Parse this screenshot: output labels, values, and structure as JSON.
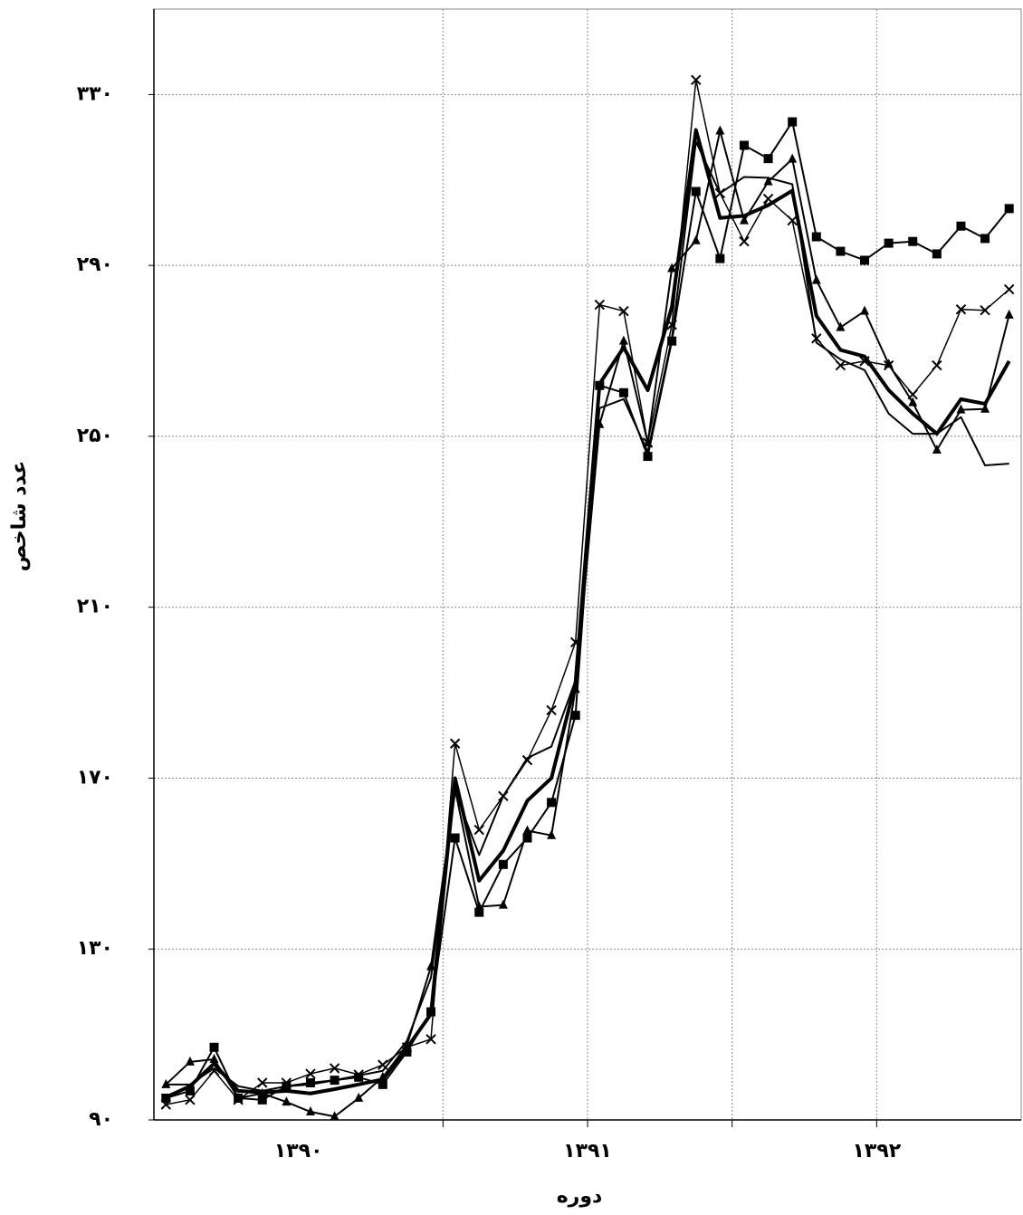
{
  "chart_data": {
    "type": "line",
    "x_label": "دوره",
    "y_label": "عدد شاخص",
    "x": [
      0.5,
      1.5,
      2.5,
      3.5,
      4.5,
      5.5,
      6.5,
      7.5,
      8.5,
      9.5,
      10.5,
      11.5,
      12.5,
      13.5,
      14.5,
      15.5,
      16.5,
      17.5,
      18.5,
      19.5,
      20.5,
      21.5,
      22.5,
      23.5,
      24.5,
      25.5,
      26.5,
      27.5,
      28.5,
      29.5,
      30.5,
      31.5,
      32.5,
      33.5,
      34.5,
      35.5
    ],
    "xlim": [
      0,
      36
    ],
    "xticks": [
      {
        "value": 6,
        "label": "۱۳۹۰"
      },
      {
        "value": 18,
        "label": "۱۳۹۱"
      },
      {
        "value": 30,
        "label": "۱۳۹۲"
      }
    ],
    "xgrid": [
      12,
      18,
      24,
      30
    ],
    "ylim": [
      90,
      350
    ],
    "yticks": [
      {
        "value": 90,
        "label": "۹۰"
      },
      {
        "value": 130,
        "label": "۱۳۰"
      },
      {
        "value": 170,
        "label": "۱۷۰"
      },
      {
        "value": 210,
        "label": "۲۱۰"
      },
      {
        "value": 250,
        "label": "۲۵۰"
      },
      {
        "value": 290,
        "label": "۲۹۰"
      },
      {
        "value": 330,
        "label": "۳۳۰"
      }
    ],
    "grid": true,
    "series": [
      {
        "color": "#000000",
        "marker": "square",
        "line_width": 2,
        "values": [
          95.1,
          96.8,
          107.0,
          95.1,
          94.7,
          97.9,
          98.7,
          99.3,
          100.0,
          98.3,
          105.9,
          115.3,
          156.0,
          138.6,
          149.8,
          156.0,
          164.3,
          184.7,
          261.9,
          260.2,
          245.3,
          272.3,
          307.3,
          291.6,
          318.1,
          315.0,
          323.6,
          296.7,
          293.3,
          291.2,
          295.2,
          295.6,
          292.7,
          299.2,
          296.3,
          303.3
        ]
      },
      {
        "color": "#000000",
        "marker": "triangle",
        "line_width": 2,
        "values": [
          98.3,
          103.6,
          104.2,
          95.1,
          96.2,
          94.2,
          91.9,
          90.8,
          95.1,
          100.0,
          107.4,
          125.9,
          167.5,
          139.9,
          140.3,
          157.7,
          156.6,
          190.8,
          252.8,
          272.3,
          248.5,
          289.3,
          295.8,
          321.5,
          300.5,
          309.6,
          314.9,
          286.5,
          275.5,
          279.3,
          266.9,
          257.9,
          246.8,
          256.2,
          256.4,
          278.4
        ]
      },
      {
        "color": "#000000",
        "marker": "x",
        "line_width": 1.5,
        "values": [
          93.6,
          94.7,
          101.5,
          94.7,
          98.7,
          98.7,
          100.8,
          102.1,
          100.6,
          102.9,
          107.0,
          108.9,
          178.1,
          157.9,
          165.8,
          174.2,
          185.9,
          201.8,
          280.8,
          279.3,
          248.5,
          276.1,
          333.4,
          306.9,
          295.6,
          305.6,
          300.5,
          272.9,
          266.6,
          267.6,
          266.6,
          259.8,
          266.6,
          279.7,
          279.5,
          284.4
        ]
      },
      {
        "color": "#000000",
        "marker": "none",
        "line_width": 4,
        "values": [
          95.3,
          97.9,
          103.2,
          96.8,
          96.4,
          96.8,
          96.2,
          97.2,
          98.3,
          99.5,
          106.8,
          114.8,
          170.0,
          146.0,
          153.0,
          164.7,
          170.0,
          192.3,
          262.3,
          270.8,
          260.8,
          280.3,
          321.7,
          301.1,
          301.6,
          304.1,
          307.5,
          278.2,
          270.2,
          268.7,
          260.8,
          255.3,
          250.6,
          258.7,
          257.6,
          267.6
        ]
      },
      {
        "color": "#000000",
        "marker": "none",
        "line_width": 2,
        "values": [
          98.3,
          98.3,
          102.1,
          97.9,
          96.8,
          97.9,
          98.3,
          99.3,
          100.4,
          101.5,
          108.5,
          123.3,
          166.8,
          152.0,
          165.8,
          174.7,
          177.4,
          192.9,
          256.6,
          258.7,
          246.4,
          272.9,
          319.0,
          306.9,
          310.7,
          310.5,
          309.0,
          271.9,
          268.0,
          265.5,
          255.3,
          250.6,
          250.6,
          254.5,
          243.2,
          243.6
        ]
      }
    ]
  }
}
